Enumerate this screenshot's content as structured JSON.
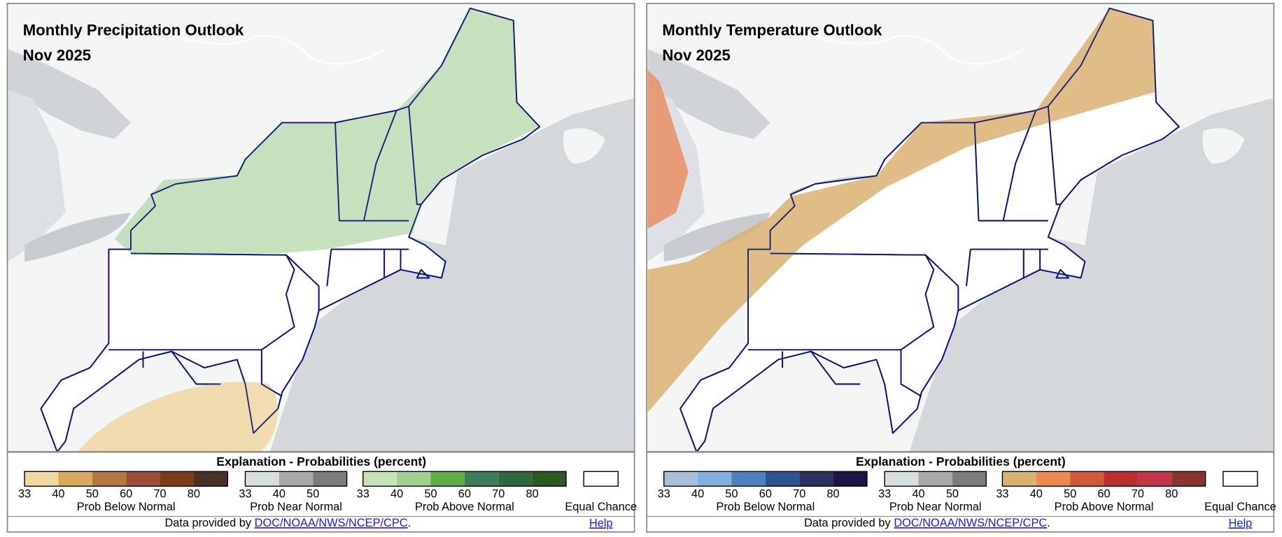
{
  "panels": [
    {
      "title": "Monthly Precipitation Outlook",
      "subtitle": "Nov 2025",
      "legend": {
        "title": "Explanation - Probabilities (percent)",
        "groups": [
          {
            "label": "Prob Below Normal",
            "ticks": [
              33,
              40,
              50,
              60,
              70,
              80
            ],
            "colors": [
              "#f0d9a0",
              "#d9aa5c",
              "#b5773e",
              "#9a4e3a",
              "#7a3d15",
              "#4a3125"
            ]
          },
          {
            "label": "Prob Near Normal",
            "ticks": [
              33,
              40,
              50
            ],
            "colors": [
              "#d7dfe0",
              "#a9a9a9",
              "#7c7c7c"
            ]
          },
          {
            "label": "Prob Above Normal",
            "ticks": [
              33,
              40,
              50,
              60,
              70,
              80
            ],
            "colors": [
              "#c6e2b8",
              "#a3d08f",
              "#5fae45",
              "#3f7c5b",
              "#2e6b3a",
              "#2d5a1e"
            ]
          }
        ],
        "equal_chance": "Equal Chance"
      },
      "footer": {
        "text": "Data provided by",
        "link": "DOC/NOAA/NWS/NCEP/CPC",
        "end": ".",
        "help": "Help"
      }
    },
    {
      "title": "Monthly Temperature Outlook",
      "subtitle": "Nov 2025",
      "legend": {
        "title": "Explanation - Probabilities (percent)",
        "groups": [
          {
            "label": "Prob Below Normal",
            "ticks": [
              33,
              40,
              50,
              60,
              70,
              80
            ],
            "colors": [
              "#a9bfd9",
              "#82b0e0",
              "#4a82c0",
              "#2a5590",
              "#2a3360",
              "#1c1545"
            ]
          },
          {
            "label": "Prob Near Normal",
            "ticks": [
              33,
              40,
              50
            ],
            "colors": [
              "#d7dfe0",
              "#a9a9a9",
              "#7c7c7c"
            ]
          },
          {
            "label": "Prob Above Normal",
            "ticks": [
              33,
              40,
              50,
              60,
              70,
              80
            ],
            "colors": [
              "#dbb172",
              "#ee8a4e",
              "#d4583a",
              "#bd2f2c",
              "#c3364a",
              "#8b3330"
            ]
          }
        ],
        "equal_chance": "Equal Chance"
      },
      "footer": {
        "text": "Data provided by",
        "link": "DOC/NOAA/NWS/NCEP/CPC",
        "end": ".",
        "help": "Help"
      }
    }
  ]
}
